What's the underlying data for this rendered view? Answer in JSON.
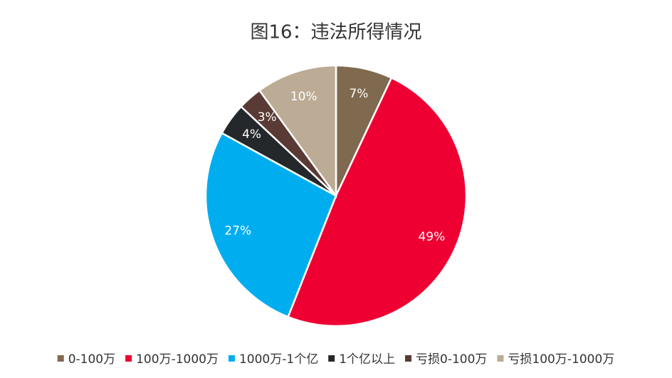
{
  "chart_data": {
    "type": "pie",
    "title": "图16：违法所得情况",
    "categories": [
      "0-100万",
      "100万-1000万",
      "1000万-1个亿",
      "1个亿以上",
      "亏损0-100万",
      "亏损100万-1000万"
    ],
    "values": [
      7,
      49,
      27,
      4,
      3,
      10
    ],
    "value_labels": [
      "7%",
      "49%",
      "27%",
      "4%",
      "3%",
      "10%"
    ],
    "colors": [
      "#7f6a4f",
      "#ee0033",
      "#00aeef",
      "#25282b",
      "#5a3a34",
      "#bcab95"
    ],
    "legend": "bottom"
  }
}
